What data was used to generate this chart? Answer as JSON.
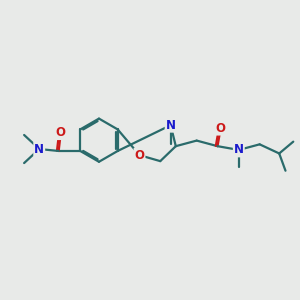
{
  "bg_color": "#e8eae8",
  "bond_color": "#2a6b6b",
  "N_color": "#1a1acc",
  "O_color": "#cc1a1a",
  "bond_width": 1.6,
  "dbo": 0.007,
  "font_size_atom": 8.5,
  "fig_size": [
    3.0,
    3.0
  ],
  "dpi": 100,
  "xlim": [
    0,
    3.0
  ],
  "ylim": [
    0,
    3.0
  ]
}
